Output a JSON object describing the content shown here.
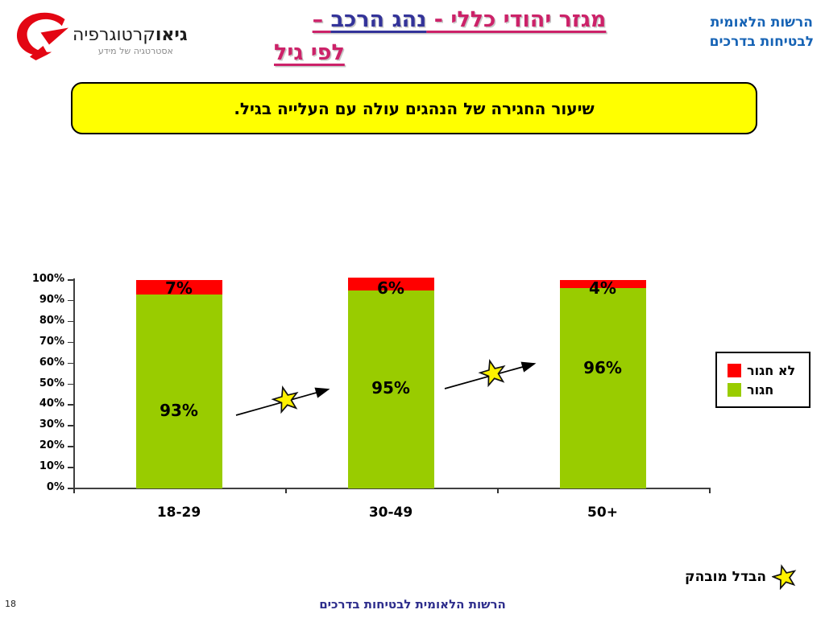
{
  "slide": {
    "page_number": "18"
  },
  "logo": {
    "brand_bold": "גיאו",
    "brand_rest": "קרטוגרפיה",
    "tagline": "אסטרטגיה של מידע"
  },
  "header": {
    "title": {
      "part1": "מגזר יהודי כללי - ",
      "part2": "נהג הרכב",
      "part3": " –",
      "line2": "לפי גיל"
    },
    "org_line1": "הרשות הלאומית",
    "org_line2": "לבטיחות בדרכים"
  },
  "callout": {
    "text": "שיעור החגירה של הנהגים עולה עם העלייה בגיל."
  },
  "chart_data": {
    "type": "bar",
    "stacked": true,
    "stacked_100_percent": true,
    "title": "",
    "xlabel": "",
    "ylabel": "",
    "categories": [
      "18-29",
      "30-49",
      "50+"
    ],
    "series": [
      {
        "name": "חגור",
        "color": "#99CC00",
        "values": [
          93,
          95,
          96
        ]
      },
      {
        "name": "לא חגור",
        "color": "#FF0000",
        "values": [
          7,
          6,
          4
        ]
      }
    ],
    "data_labels": {
      "חגור": [
        "93%",
        "95%",
        "96%"
      ],
      "לא חגור": [
        "7%",
        "6%",
        "4%"
      ]
    },
    "y_ticks": [
      "0%",
      "10%",
      "20%",
      "30%",
      "40%",
      "50%",
      "60%",
      "70%",
      "80%",
      "90%",
      "100%"
    ],
    "ylim": [
      0,
      100
    ],
    "grid": false,
    "legend_position": "right",
    "annotations": "two rising arrows with significance stars between adjacent bars"
  },
  "legend": {
    "items": [
      {
        "label": "לא חגור",
        "color": "#FF0000"
      },
      {
        "label": "חגור",
        "color": "#99CC00"
      }
    ]
  },
  "annotation": {
    "significant_label": "הבדל מובהק"
  },
  "footer": {
    "org": "הרשות הלאומית לבטיחות בדרכים"
  },
  "colors": {
    "title_primary": "#CC2269",
    "title_secondary": "#333399",
    "org_blue": "#1663B5",
    "footer_blue": "#2D2D8C",
    "callout_bg": "#FFFF00",
    "bar_green": "#99CC00",
    "bar_red": "#FF0000",
    "star_yellow": "#FFF200",
    "logo_red": "#E30613"
  }
}
